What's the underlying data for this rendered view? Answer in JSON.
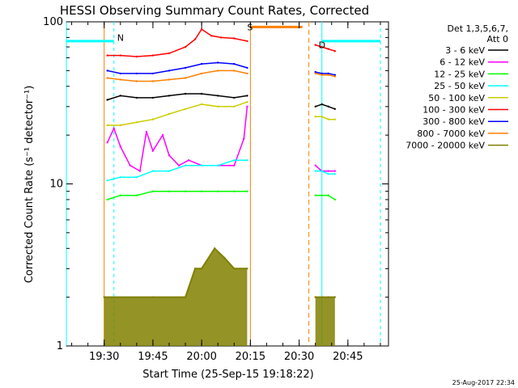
{
  "chart_data": {
    "type": "line",
    "title": "HESSI Observing Summary Count Rates, Corrected",
    "xlabel": "Start Time (25-Sep-15 19:18:22)",
    "ylabel": "Corrected Count Rate (s⁻¹ detector⁻¹)",
    "y_scale": "log",
    "ylim": [
      1,
      100
    ],
    "y_ticks": [
      1,
      10,
      100
    ],
    "y_tick_labels": [
      "1",
      "10",
      "100"
    ],
    "x_range_minutes": [
      "19:18:22",
      "20:57:30"
    ],
    "x_ticks": [
      "19:30",
      "19:45",
      "20:00",
      "20:15",
      "20:30",
      "20:45"
    ],
    "legend_position": "top-right",
    "legend_header": [
      "Det 1,3,5,6,7,",
      "Att 0"
    ],
    "grid": false,
    "series": [
      {
        "name": "3 - 6 keV",
        "color": "#000000",
        "segments": [
          {
            "t": [
              "19:31",
              "19:35",
              "19:40",
              "19:45",
              "19:50",
              "19:55",
              "20:00",
              "20:05",
              "20:10",
              "20:14"
            ],
            "y": [
              33,
              35,
              34,
              34,
              35,
              36,
              36,
              35,
              34,
              35
            ]
          },
          {
            "t": [
              "20:35",
              "20:37",
              "20:39",
              "20:41"
            ],
            "y": [
              30,
              31,
              30,
              29
            ]
          }
        ]
      },
      {
        "name": "6 - 12 keV",
        "color": "#ff00ff",
        "segments": [
          {
            "t": [
              "19:31",
              "19:33",
              "19:35",
              "19:38",
              "19:41",
              "19:43",
              "19:45",
              "19:48",
              "19:50",
              "19:53",
              "19:56",
              "20:00",
              "20:05",
              "20:10",
              "20:13",
              "20:14"
            ],
            "y": [
              18,
              22,
              17,
              13,
              12,
              21,
              16,
              20,
              15,
              13,
              14,
              13,
              13,
              13,
              19,
              30
            ]
          },
          {
            "t": [
              "20:35",
              "20:37",
              "20:39",
              "20:41"
            ],
            "y": [
              13,
              12,
              12,
              12
            ]
          }
        ]
      },
      {
        "name": "12 - 25 keV",
        "color": "#00ff00",
        "segments": [
          {
            "t": [
              "19:31",
              "19:35",
              "19:40",
              "19:45",
              "19:50",
              "19:55",
              "20:00",
              "20:05",
              "20:10",
              "20:14"
            ],
            "y": [
              8,
              8.5,
              8.5,
              9,
              9,
              9,
              9,
              9,
              9,
              9
            ]
          },
          {
            "t": [
              "20:35",
              "20:37",
              "20:39",
              "20:41"
            ],
            "y": [
              8.5,
              8.5,
              8.5,
              8
            ]
          }
        ]
      },
      {
        "name": "25 - 50 keV",
        "color": "#00ffff",
        "segments": [
          {
            "t": [
              "19:31",
              "19:35",
              "19:40",
              "19:45",
              "19:50",
              "19:55",
              "20:00",
              "20:05",
              "20:10",
              "20:14"
            ],
            "y": [
              10.5,
              11,
              11,
              12,
              12,
              13,
              13,
              13,
              14,
              14
            ]
          },
          {
            "t": [
              "20:35",
              "20:37",
              "20:39",
              "20:41"
            ],
            "y": [
              12,
              12,
              11.5,
              11.5
            ]
          }
        ]
      },
      {
        "name": "50 - 100 keV",
        "color": "#cccc00",
        "segments": [
          {
            "t": [
              "19:31",
              "19:35",
              "19:40",
              "19:45",
              "19:50",
              "19:55",
              "20:00",
              "20:05",
              "20:10",
              "20:14"
            ],
            "y": [
              23,
              23,
              24,
              25,
              27,
              29,
              31,
              30,
              30,
              32
            ]
          },
          {
            "t": [
              "20:35",
              "20:37",
              "20:39",
              "20:41"
            ],
            "y": [
              26,
              26,
              25,
              25
            ]
          }
        ]
      },
      {
        "name": "100 - 300 keV",
        "color": "#ff0000",
        "segments": [
          {
            "t": [
              "19:31",
              "19:35",
              "19:40",
              "19:45",
              "19:50",
              "19:55",
              "19:58",
              "20:00",
              "20:03",
              "20:06",
              "20:10",
              "20:14"
            ],
            "y": [
              62,
              62,
              61,
              62,
              64,
              70,
              78,
              90,
              82,
              80,
              79,
              76
            ]
          },
          {
            "t": [
              "20:35",
              "20:37",
              "20:39",
              "20:41"
            ],
            "y": [
              72,
              70,
              68,
              66
            ]
          }
        ]
      },
      {
        "name": "300 - 800 keV",
        "color": "#0000ff",
        "segments": [
          {
            "t": [
              "19:31",
              "19:35",
              "19:40",
              "19:45",
              "19:50",
              "19:55",
              "20:00",
              "20:05",
              "20:10",
              "20:14"
            ],
            "y": [
              50,
              48,
              48,
              48,
              50,
              52,
              55,
              56,
              55,
              52
            ]
          },
          {
            "t": [
              "20:35",
              "20:37",
              "20:39",
              "20:41"
            ],
            "y": [
              49,
              48,
              48,
              47
            ]
          }
        ]
      },
      {
        "name": "800 - 7000 keV",
        "color": "#ff8000",
        "segments": [
          {
            "t": [
              "19:31",
              "19:35",
              "19:40",
              "19:45",
              "19:50",
              "19:55",
              "20:00",
              "20:05",
              "20:10",
              "20:14"
            ],
            "y": [
              45,
              44,
              43,
              43,
              44,
              45,
              48,
              50,
              50,
              48
            ]
          },
          {
            "t": [
              "20:35",
              "20:37",
              "20:39",
              "20:41"
            ],
            "y": [
              48,
              47,
              47,
              46
            ]
          }
        ]
      },
      {
        "name": "7000 - 20000 keV",
        "color": "#808000",
        "segments": [
          {
            "t": [
              "19:30",
              "19:45",
              "19:55",
              "19:58",
              "20:00",
              "20:04",
              "20:07",
              "20:10",
              "20:14"
            ],
            "y": [
              2,
              2,
              2,
              3,
              3,
              4,
              3.5,
              3,
              3
            ]
          },
          {
            "t": [
              "20:35",
              "20:37",
              "20:39",
              "20:41"
            ],
            "y": [
              2,
              2,
              2,
              2
            ]
          }
        ]
      }
    ],
    "annotations": [
      {
        "text": "N",
        "color": "#00ffff"
      },
      {
        "text": "S",
        "color": "#ff8000"
      },
      {
        "text": "D",
        "color": "#ff0000"
      }
    ],
    "event_lines": {
      "cyan_solid": [
        "19:18:22",
        "20:37"
      ],
      "cyan_dashed": [
        "19:33",
        "20:55"
      ],
      "orange_solid": [
        "19:30",
        "20:15"
      ],
      "orange_dashed": [
        "20:33"
      ]
    }
  },
  "footer": {
    "timestamp": "25-Aug-2017 22:34"
  }
}
